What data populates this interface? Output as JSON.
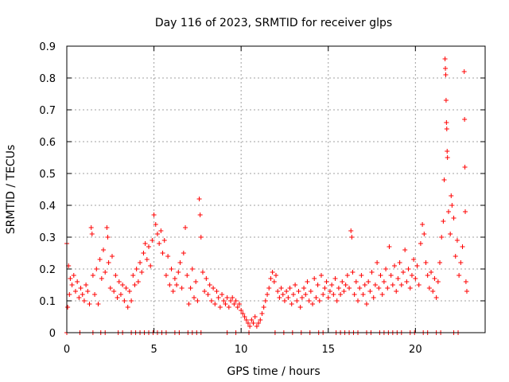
{
  "chart_data": {
    "type": "scatter",
    "title": "Day 116 of 2023, SRMTID for receiver glps",
    "xlabel": "GPS time / hours",
    "ylabel": "SRMTID / TECUs",
    "xlim": [
      0,
      24
    ],
    "ylim": [
      0,
      0.9
    ],
    "xticks": [
      0,
      5,
      10,
      15,
      20
    ],
    "xtick_labels": [
      "0",
      "5",
      "10",
      "15",
      "20"
    ],
    "yticks": [
      0,
      0.1,
      0.2,
      0.3,
      0.4,
      0.5,
      0.6,
      0.7,
      0.8,
      0.9
    ],
    "ytick_labels": [
      "0",
      "0.1",
      "0.2",
      "0.3",
      "0.4",
      "0.5",
      "0.6",
      "0.7",
      "0.8",
      "0.9"
    ],
    "grid": true,
    "marker": "plus",
    "series": [
      {
        "name": "SRMTID",
        "color": "#ff0000",
        "points": [
          [
            0.0,
            0.28
          ],
          [
            0.05,
            0.08
          ],
          [
            0.1,
            0.21
          ],
          [
            0.15,
            0.12
          ],
          [
            0.2,
            0.17
          ],
          [
            0.3,
            0.15
          ],
          [
            0.4,
            0.18
          ],
          [
            0.5,
            0.13
          ],
          [
            0.6,
            0.16
          ],
          [
            0.7,
            0.11
          ],
          [
            0.8,
            0.14
          ],
          [
            0.9,
            0.12
          ],
          [
            1.0,
            0.1
          ],
          [
            1.1,
            0.15
          ],
          [
            1.2,
            0.13
          ],
          [
            1.3,
            0.09
          ],
          [
            1.4,
            0.33
          ],
          [
            1.45,
            0.31
          ],
          [
            1.5,
            0.18
          ],
          [
            1.6,
            0.12
          ],
          [
            1.7,
            0.2
          ],
          [
            1.8,
            0.09
          ],
          [
            1.9,
            0.23
          ],
          [
            2.0,
            0.17
          ],
          [
            2.1,
            0.26
          ],
          [
            2.2,
            0.19
          ],
          [
            2.3,
            0.33
          ],
          [
            2.35,
            0.3
          ],
          [
            2.4,
            0.22
          ],
          [
            2.5,
            0.14
          ],
          [
            2.6,
            0.24
          ],
          [
            2.7,
            0.13
          ],
          [
            2.8,
            0.18
          ],
          [
            2.9,
            0.11
          ],
          [
            3.0,
            0.16
          ],
          [
            3.1,
            0.12
          ],
          [
            3.2,
            0.15
          ],
          [
            3.3,
            0.1
          ],
          [
            3.4,
            0.14
          ],
          [
            3.5,
            0.08
          ],
          [
            3.6,
            0.13
          ],
          [
            3.7,
            0.1
          ],
          [
            3.8,
            0.18
          ],
          [
            3.9,
            0.15
          ],
          [
            4.0,
            0.2
          ],
          [
            4.1,
            0.16
          ],
          [
            4.2,
            0.22
          ],
          [
            4.3,
            0.19
          ],
          [
            4.4,
            0.25
          ],
          [
            4.5,
            0.28
          ],
          [
            4.6,
            0.23
          ],
          [
            4.7,
            0.27
          ],
          [
            4.8,
            0.21
          ],
          [
            4.9,
            0.29
          ],
          [
            5.0,
            0.37
          ],
          [
            5.1,
            0.34
          ],
          [
            5.2,
            0.31
          ],
          [
            5.3,
            0.28
          ],
          [
            5.4,
            0.32
          ],
          [
            5.5,
            0.25
          ],
          [
            5.6,
            0.29
          ],
          [
            5.7,
            0.18
          ],
          [
            5.8,
            0.24
          ],
          [
            5.9,
            0.15
          ],
          [
            6.0,
            0.2
          ],
          [
            6.1,
            0.13
          ],
          [
            6.2,
            0.17
          ],
          [
            6.3,
            0.15
          ],
          [
            6.4,
            0.19
          ],
          [
            6.5,
            0.22
          ],
          [
            6.6,
            0.14
          ],
          [
            6.7,
            0.25
          ],
          [
            6.8,
            0.33
          ],
          [
            6.9,
            0.18
          ],
          [
            7.0,
            0.09
          ],
          [
            7.1,
            0.14
          ],
          [
            7.2,
            0.2
          ],
          [
            7.3,
            0.11
          ],
          [
            7.4,
            0.16
          ],
          [
            7.5,
            0.1
          ],
          [
            7.6,
            0.42
          ],
          [
            7.65,
            0.37
          ],
          [
            7.7,
            0.3
          ],
          [
            7.8,
            0.19
          ],
          [
            7.9,
            0.13
          ],
          [
            8.0,
            0.17
          ],
          [
            8.1,
            0.12
          ],
          [
            8.2,
            0.15
          ],
          [
            8.3,
            0.1
          ],
          [
            8.4,
            0.14
          ],
          [
            8.5,
            0.09
          ],
          [
            8.6,
            0.13
          ],
          [
            8.7,
            0.11
          ],
          [
            8.8,
            0.08
          ],
          [
            8.9,
            0.12
          ],
          [
            9.0,
            0.1
          ],
          [
            9.1,
            0.09
          ],
          [
            9.2,
            0.11
          ],
          [
            9.3,
            0.08
          ],
          [
            9.4,
            0.1
          ],
          [
            9.5,
            0.11
          ],
          [
            9.6,
            0.09
          ],
          [
            9.7,
            0.1
          ],
          [
            9.8,
            0.08
          ],
          [
            9.9,
            0.09
          ],
          [
            10.0,
            0.07
          ],
          [
            10.1,
            0.06
          ],
          [
            10.2,
            0.05
          ],
          [
            10.3,
            0.04
          ],
          [
            10.4,
            0.03
          ],
          [
            10.5,
            0.02
          ],
          [
            10.6,
            0.04
          ],
          [
            10.7,
            0.03
          ],
          [
            10.8,
            0.05
          ],
          [
            10.9,
            0.02
          ],
          [
            11.0,
            0.03
          ],
          [
            11.1,
            0.04
          ],
          [
            11.2,
            0.06
          ],
          [
            11.3,
            0.08
          ],
          [
            11.4,
            0.1
          ],
          [
            11.5,
            0.12
          ],
          [
            11.6,
            0.14
          ],
          [
            11.7,
            0.17
          ],
          [
            11.8,
            0.19
          ],
          [
            11.9,
            0.16
          ],
          [
            12.0,
            0.18
          ],
          [
            12.1,
            0.13
          ],
          [
            12.2,
            0.11
          ],
          [
            12.3,
            0.14
          ],
          [
            12.4,
            0.12
          ],
          [
            12.5,
            0.1
          ],
          [
            12.6,
            0.13
          ],
          [
            12.7,
            0.11
          ],
          [
            12.8,
            0.14
          ],
          [
            12.9,
            0.09
          ],
          [
            13.0,
            0.12
          ],
          [
            13.1,
            0.15
          ],
          [
            13.2,
            0.1
          ],
          [
            13.3,
            0.13
          ],
          [
            13.4,
            0.08
          ],
          [
            13.5,
            0.11
          ],
          [
            13.6,
            0.14
          ],
          [
            13.7,
            0.12
          ],
          [
            13.8,
            0.16
          ],
          [
            13.9,
            0.1
          ],
          [
            14.0,
            0.13
          ],
          [
            14.1,
            0.09
          ],
          [
            14.2,
            0.17
          ],
          [
            14.3,
            0.11
          ],
          [
            14.4,
            0.15
          ],
          [
            14.5,
            0.1
          ],
          [
            14.6,
            0.18
          ],
          [
            14.7,
            0.12
          ],
          [
            14.8,
            0.14
          ],
          [
            14.9,
            0.16
          ],
          [
            15.0,
            0.11
          ],
          [
            15.1,
            0.13
          ],
          [
            15.2,
            0.15
          ],
          [
            15.3,
            0.12
          ],
          [
            15.4,
            0.17
          ],
          [
            15.5,
            0.1
          ],
          [
            15.6,
            0.14
          ],
          [
            15.7,
            0.12
          ],
          [
            15.8,
            0.16
          ],
          [
            15.9,
            0.13
          ],
          [
            16.0,
            0.15
          ],
          [
            16.1,
            0.18
          ],
          [
            16.2,
            0.14
          ],
          [
            16.3,
            0.32
          ],
          [
            16.35,
            0.3
          ],
          [
            16.4,
            0.19
          ],
          [
            16.5,
            0.12
          ],
          [
            16.6,
            0.16
          ],
          [
            16.7,
            0.1
          ],
          [
            16.8,
            0.14
          ],
          [
            16.9,
            0.18
          ],
          [
            17.0,
            0.12
          ],
          [
            17.1,
            0.15
          ],
          [
            17.2,
            0.09
          ],
          [
            17.3,
            0.16
          ],
          [
            17.4,
            0.13
          ],
          [
            17.5,
            0.19
          ],
          [
            17.6,
            0.11
          ],
          [
            17.7,
            0.15
          ],
          [
            17.8,
            0.22
          ],
          [
            17.9,
            0.14
          ],
          [
            18.0,
            0.18
          ],
          [
            18.1,
            0.12
          ],
          [
            18.2,
            0.16
          ],
          [
            18.3,
            0.2
          ],
          [
            18.4,
            0.14
          ],
          [
            18.5,
            0.27
          ],
          [
            18.6,
            0.18
          ],
          [
            18.7,
            0.15
          ],
          [
            18.8,
            0.21
          ],
          [
            18.9,
            0.13
          ],
          [
            19.0,
            0.17
          ],
          [
            19.1,
            0.22
          ],
          [
            19.2,
            0.15
          ],
          [
            19.3,
            0.19
          ],
          [
            19.4,
            0.26
          ],
          [
            19.5,
            0.16
          ],
          [
            19.6,
            0.2
          ],
          [
            19.7,
            0.14
          ],
          [
            19.8,
            0.18
          ],
          [
            19.9,
            0.23
          ],
          [
            20.0,
            0.17
          ],
          [
            20.1,
            0.21
          ],
          [
            20.2,
            0.15
          ],
          [
            20.3,
            0.28
          ],
          [
            20.4,
            0.34
          ],
          [
            20.5,
            0.31
          ],
          [
            20.6,
            0.22
          ],
          [
            20.7,
            0.18
          ],
          [
            20.8,
            0.14
          ],
          [
            20.9,
            0.19
          ],
          [
            21.0,
            0.13
          ],
          [
            21.1,
            0.17
          ],
          [
            21.2,
            0.11
          ],
          [
            21.3,
            0.16
          ],
          [
            21.4,
            0.22
          ],
          [
            21.5,
            0.3
          ],
          [
            21.6,
            0.35
          ],
          [
            21.65,
            0.48
          ],
          [
            21.7,
            0.86
          ],
          [
            21.72,
            0.83
          ],
          [
            21.74,
            0.81
          ],
          [
            21.76,
            0.73
          ],
          [
            21.78,
            0.66
          ],
          [
            21.8,
            0.64
          ],
          [
            21.82,
            0.57
          ],
          [
            21.84,
            0.55
          ],
          [
            21.9,
            0.38
          ],
          [
            22.0,
            0.31
          ],
          [
            22.05,
            0.43
          ],
          [
            22.1,
            0.4
          ],
          [
            22.2,
            0.36
          ],
          [
            22.3,
            0.24
          ],
          [
            22.4,
            0.29
          ],
          [
            22.5,
            0.18
          ],
          [
            22.6,
            0.22
          ],
          [
            22.7,
            0.27
          ],
          [
            22.8,
            0.82
          ],
          [
            22.82,
            0.67
          ],
          [
            22.84,
            0.52
          ],
          [
            22.86,
            0.38
          ],
          [
            22.9,
            0.16
          ],
          [
            22.95,
            0.13
          ]
        ],
        "zero_points_x": [
          0.0,
          0.75,
          1.5,
          1.95,
          2.2,
          2.95,
          3.2,
          3.7,
          3.95,
          4.2,
          4.45,
          4.7,
          4.95,
          5.2,
          5.45,
          5.7,
          6.2,
          6.45,
          6.95,
          7.2,
          7.45,
          7.7,
          9.2,
          9.7,
          10.45,
          11.95,
          12.45,
          12.95,
          13.45,
          13.95,
          14.45,
          14.7,
          15.45,
          15.7,
          15.95,
          16.2,
          16.45,
          16.7,
          17.2,
          17.45,
          17.95,
          18.2,
          18.45,
          18.7,
          18.95,
          19.2,
          19.7,
          19.95,
          20.45,
          20.7,
          21.2,
          21.45,
          22.2,
          22.45
        ]
      }
    ]
  }
}
